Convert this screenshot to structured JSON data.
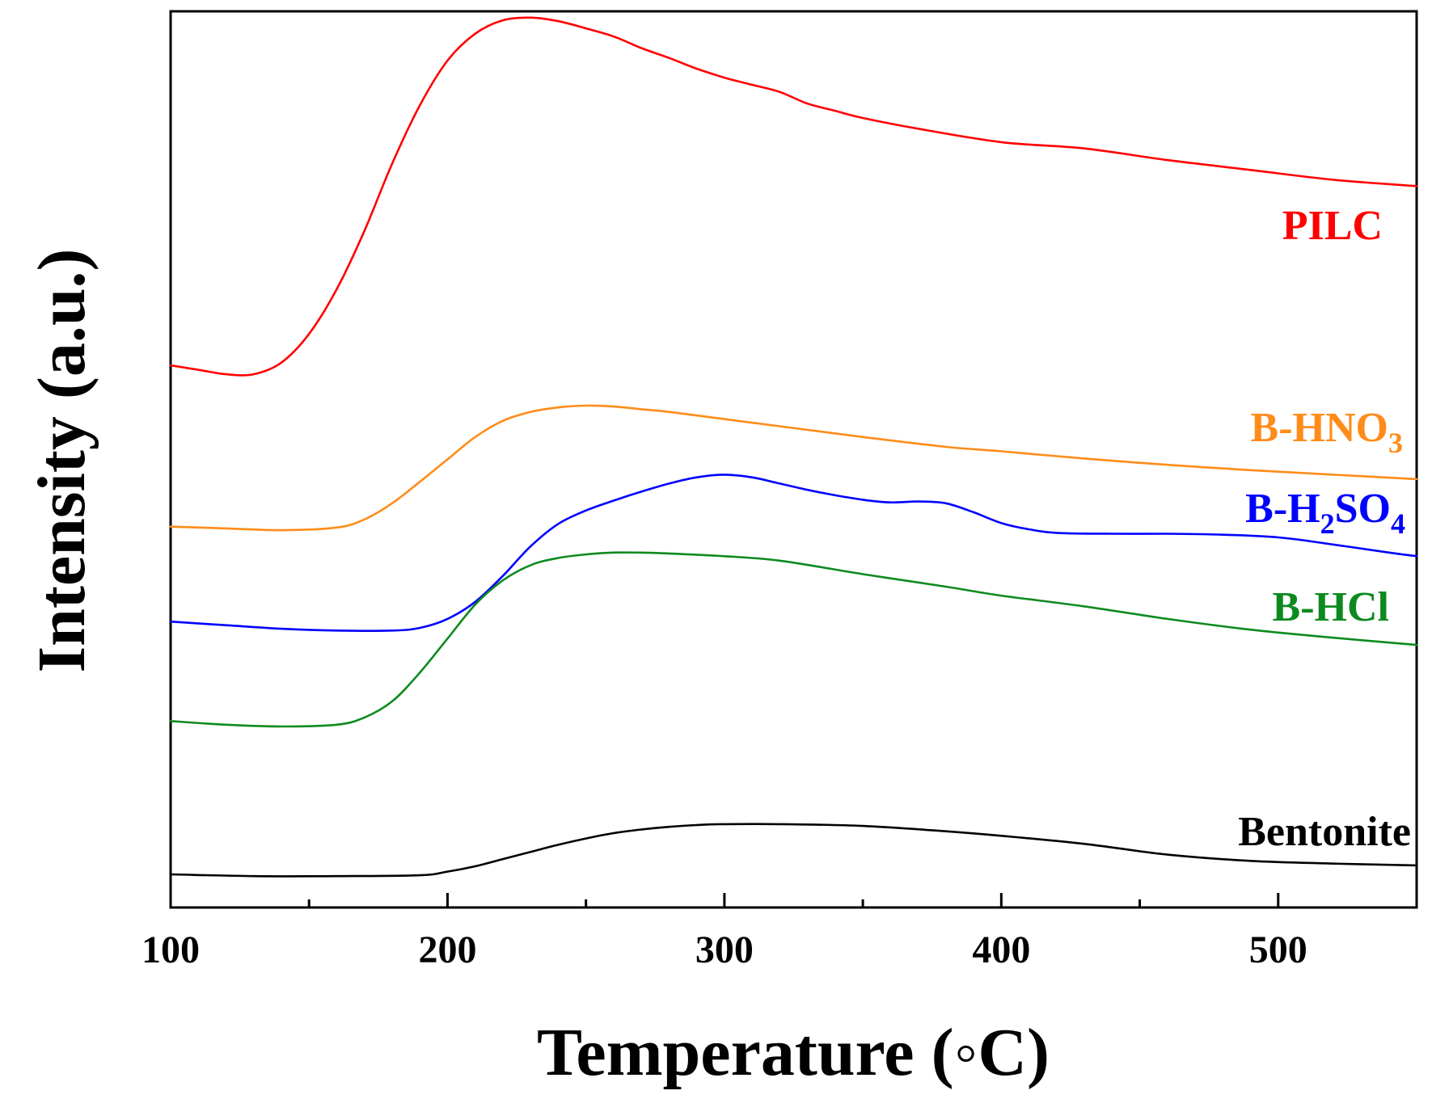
{
  "chart_data": {
    "type": "line",
    "title": "",
    "xlabel": "Temperature (◦C)",
    "ylabel": "Intensity (a.u.)",
    "xlim": [
      100,
      550
    ],
    "ylim": [
      0,
      100
    ],
    "x_ticks": [
      100,
      200,
      300,
      400,
      500
    ],
    "y_ticks": [],
    "grid": false,
    "legend": "inline labels at right end of each curve",
    "series": [
      {
        "name": "PILC",
        "label_parts": [
          {
            "text": "PILC",
            "sub": false
          }
        ],
        "color": "#ff0000",
        "x": [
          100,
          110,
          120,
          130,
          140,
          150,
          160,
          170,
          180,
          190,
          200,
          210,
          220,
          230,
          240,
          250,
          260,
          270,
          280,
          290,
          300,
          310,
          320,
          330,
          340,
          350,
          370,
          400,
          430,
          460,
          490,
          520,
          550
        ],
        "y": [
          60.5,
          60.0,
          59.5,
          59.5,
          60.8,
          64.0,
          69.0,
          75.5,
          83.0,
          89.5,
          94.5,
          97.5,
          99.0,
          99.3,
          98.9,
          98.1,
          97.2,
          95.9,
          94.8,
          93.6,
          92.6,
          91.8,
          91.0,
          89.7,
          88.9,
          88.1,
          86.9,
          85.4,
          84.7,
          83.4,
          82.3,
          81.2,
          80.5
        ]
      },
      {
        "name": "B-HNO3",
        "label_parts": [
          {
            "text": "B-HNO",
            "sub": false
          },
          {
            "text": "3",
            "sub": true
          }
        ],
        "color": "#ff8c1a",
        "x": [
          100,
          120,
          140,
          160,
          170,
          180,
          190,
          200,
          210,
          220,
          230,
          240,
          250,
          260,
          270,
          280,
          300,
          320,
          350,
          380,
          400,
          430,
          460,
          490,
          520,
          550
        ],
        "y": [
          42.5,
          42.3,
          42.1,
          42.4,
          43.3,
          45.1,
          47.5,
          50.0,
          52.5,
          54.3,
          55.3,
          55.8,
          56.0,
          55.9,
          55.6,
          55.3,
          54.5,
          53.7,
          52.5,
          51.4,
          50.9,
          50.1,
          49.4,
          48.8,
          48.3,
          47.8
        ]
      },
      {
        "name": "B-H2SO4",
        "label_parts": [
          {
            "text": "B-H",
            "sub": false
          },
          {
            "text": "2",
            "sub": true
          },
          {
            "text": "SO",
            "sub": false
          },
          {
            "text": "4",
            "sub": true
          }
        ],
        "color": "#0000ff",
        "x": [
          100,
          120,
          140,
          160,
          180,
          190,
          200,
          210,
          220,
          230,
          240,
          250,
          260,
          270,
          280,
          290,
          300,
          310,
          320,
          330,
          340,
          350,
          360,
          370,
          380,
          390,
          400,
          410,
          420,
          440,
          460,
          480,
          500,
          520,
          540,
          550
        ],
        "y": [
          31.9,
          31.5,
          31.1,
          30.9,
          30.9,
          31.2,
          32.2,
          34.1,
          37.0,
          40.3,
          42.8,
          44.3,
          45.4,
          46.4,
          47.3,
          48.0,
          48.3,
          48.0,
          47.3,
          46.6,
          46.0,
          45.5,
          45.2,
          45.3,
          45.1,
          44.1,
          42.9,
          42.2,
          41.8,
          41.7,
          41.7,
          41.6,
          41.3,
          40.5,
          39.6,
          39.2
        ]
      },
      {
        "name": "B-HCl",
        "label_parts": [
          {
            "text": "B-HCl",
            "sub": false
          }
        ],
        "color": "#0d8a1f",
        "x": [
          100,
          120,
          140,
          160,
          170,
          180,
          190,
          200,
          210,
          220,
          230,
          240,
          250,
          260,
          270,
          280,
          300,
          320,
          350,
          380,
          400,
          430,
          460,
          490,
          520,
          550
        ],
        "y": [
          20.8,
          20.4,
          20.2,
          20.4,
          21.2,
          23.0,
          26.2,
          30.0,
          33.8,
          36.5,
          38.2,
          39.0,
          39.4,
          39.6,
          39.6,
          39.5,
          39.2,
          38.7,
          37.2,
          35.8,
          34.8,
          33.6,
          32.2,
          31.0,
          30.1,
          29.3
        ]
      },
      {
        "name": "Bentonite",
        "label_parts": [
          {
            "text": "Bentonite",
            "sub": false
          }
        ],
        "color": "#000000",
        "x": [
          100,
          130,
          160,
          190,
          200,
          210,
          220,
          230,
          240,
          250,
          260,
          270,
          280,
          290,
          300,
          320,
          350,
          380,
          400,
          430,
          460,
          490,
          520,
          550
        ],
        "y": [
          3.7,
          3.5,
          3.5,
          3.6,
          4.0,
          4.6,
          5.4,
          6.2,
          7.0,
          7.7,
          8.3,
          8.7,
          9.0,
          9.2,
          9.3,
          9.3,
          9.1,
          8.5,
          8.0,
          7.1,
          5.9,
          5.2,
          4.9,
          4.7
        ]
      }
    ]
  }
}
